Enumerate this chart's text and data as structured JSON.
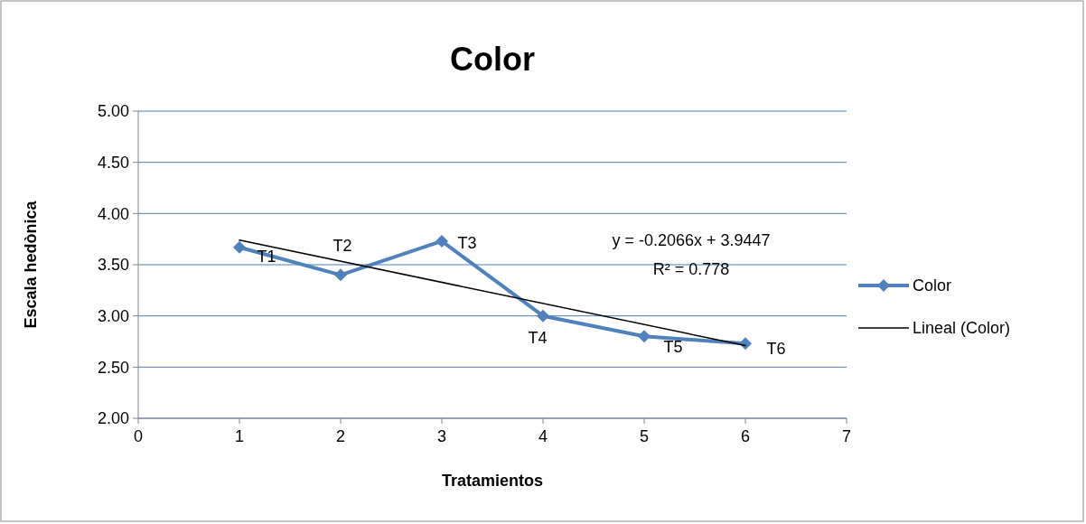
{
  "chart_data": {
    "type": "line",
    "title": "Color",
    "xlabel": "Tratamientos",
    "ylabel": "Escala hedònica",
    "xlim": [
      0,
      7
    ],
    "xticks": [
      0,
      1,
      2,
      3,
      4,
      5,
      6,
      7
    ],
    "ylim": [
      2,
      5
    ],
    "yticks": [
      {
        "value": 2,
        "label": "2.00"
      },
      {
        "value": 2.5,
        "label": "2.50"
      },
      {
        "value": 3,
        "label": "3.00"
      },
      {
        "value": 3.5,
        "label": "3.50"
      },
      {
        "value": 4,
        "label": "4.00"
      },
      {
        "value": 4.5,
        "label": "4.50"
      },
      {
        "value": 5,
        "label": "5.00"
      }
    ],
    "grid": "y",
    "legend": "right",
    "line_style": "solid",
    "series": [
      {
        "name": "Color",
        "color": "#4f81bd",
        "marker": "diamond",
        "x": [
          1,
          2,
          3,
          4,
          5,
          6
        ],
        "values": [
          3.67,
          3.4,
          3.73,
          3.0,
          2.8,
          2.73
        ]
      },
      {
        "name": "Lineal (Color)",
        "color": "#000000",
        "type": "line",
        "marker": "none",
        "x": [
          1,
          6
        ],
        "values": [
          3.74,
          2.71
        ]
      }
    ],
    "annotations": [
      {
        "text": "T1",
        "x": 1,
        "y": 3.67
      },
      {
        "text": "T2",
        "x": 2,
        "y": 3.4
      },
      {
        "text": "T3",
        "x": 3,
        "y": 3.73
      },
      {
        "text": "T4",
        "x": 4,
        "y": 3.0
      },
      {
        "text": "T5",
        "x": 5,
        "y": 2.8
      },
      {
        "text": "T6",
        "x": 6,
        "y": 2.73
      },
      "y = -0.2066x + 3.9447",
      "R² = 0.778"
    ]
  }
}
